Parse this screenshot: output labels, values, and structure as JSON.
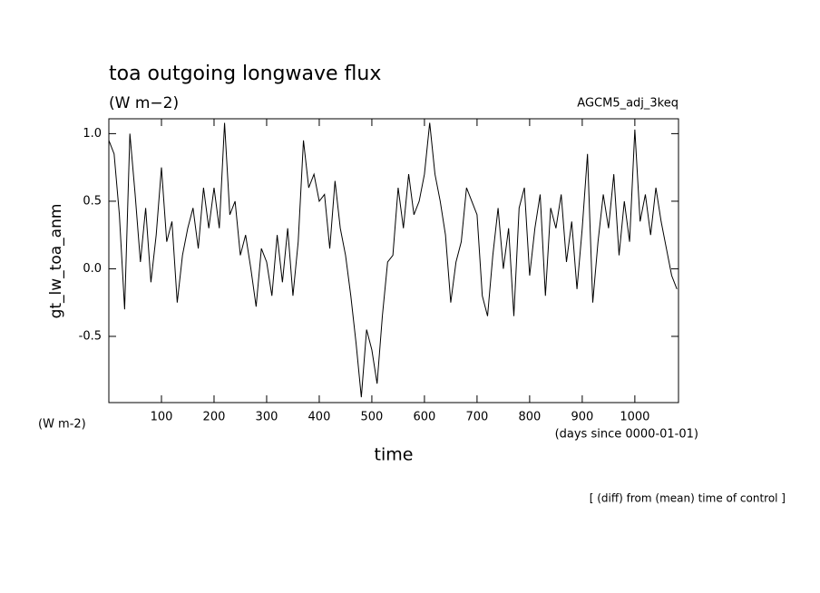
{
  "chart_data": {
    "type": "line",
    "title": "toa outgoing longwave flux",
    "subtitle": "(W m−2)",
    "annotation": "AGCM5_adj_3keq",
    "y_label": "gt_lw_toa_anm",
    "y_unit": "(W m-2)",
    "x_unit": "(days since 0000-01-01)",
    "x_label": "time",
    "footnote": "[ (diff) from (mean) time of control ]",
    "color": "#000000",
    "xlim": [
      0,
      1083
    ],
    "ylim": [
      -0.99,
      1.11
    ],
    "xticks": [
      100,
      200,
      300,
      400,
      500,
      600,
      700,
      800,
      900,
      1000
    ],
    "yticks": [
      -0.5,
      {
        "value": 0,
        "label": "0.0"
      },
      0.5,
      {
        "value": 1,
        "label": "1.0"
      }
    ],
    "x": [
      0,
      10,
      20,
      30,
      40,
      50,
      60,
      70,
      80,
      90,
      100,
      110,
      120,
      130,
      140,
      150,
      160,
      170,
      180,
      190,
      200,
      210,
      220,
      230,
      240,
      250,
      260,
      270,
      280,
      290,
      300,
      310,
      320,
      330,
      340,
      350,
      360,
      370,
      380,
      390,
      400,
      410,
      420,
      430,
      440,
      450,
      460,
      470,
      480,
      490,
      500,
      510,
      520,
      530,
      540,
      550,
      560,
      570,
      580,
      590,
      600,
      610,
      620,
      630,
      640,
      650,
      660,
      670,
      680,
      690,
      700,
      710,
      720,
      730,
      740,
      750,
      760,
      770,
      780,
      790,
      800,
      810,
      820,
      830,
      840,
      850,
      860,
      870,
      880,
      890,
      900,
      910,
      920,
      930,
      940,
      950,
      960,
      970,
      980,
      990,
      1000,
      1010,
      1020,
      1030,
      1040,
      1050,
      1060,
      1070,
      1080
    ],
    "values": [
      0.95,
      0.85,
      0.4,
      -0.3,
      1.0,
      0.55,
      0.05,
      0.45,
      -0.1,
      0.25,
      0.75,
      0.2,
      0.35,
      -0.25,
      0.1,
      0.3,
      0.45,
      0.15,
      0.6,
      0.3,
      0.6,
      0.3,
      1.08,
      0.4,
      0.5,
      0.1,
      0.25,
      0.0,
      -0.28,
      0.15,
      0.05,
      -0.2,
      0.25,
      -0.1,
      0.3,
      -0.2,
      0.2,
      0.95,
      0.6,
      0.7,
      0.5,
      0.55,
      0.15,
      0.65,
      0.3,
      0.1,
      -0.2,
      -0.55,
      -0.95,
      -0.45,
      -0.6,
      -0.85,
      -0.35,
      0.05,
      0.1,
      0.6,
      0.3,
      0.7,
      0.4,
      0.5,
      0.7,
      1.08,
      0.7,
      0.5,
      0.25,
      -0.25,
      0.05,
      0.2,
      0.6,
      0.5,
      0.4,
      -0.2,
      -0.35,
      0.1,
      0.45,
      0.0,
      0.3,
      -0.35,
      0.45,
      0.6,
      -0.05,
      0.3,
      0.55,
      -0.2,
      0.45,
      0.3,
      0.55,
      0.05,
      0.35,
      -0.15,
      0.3,
      0.85,
      -0.25,
      0.2,
      0.55,
      0.3,
      0.7,
      0.1,
      0.5,
      0.2,
      1.03,
      0.35,
      0.55,
      0.25,
      0.6,
      0.35,
      0.15,
      -0.05,
      -0.15
    ]
  }
}
